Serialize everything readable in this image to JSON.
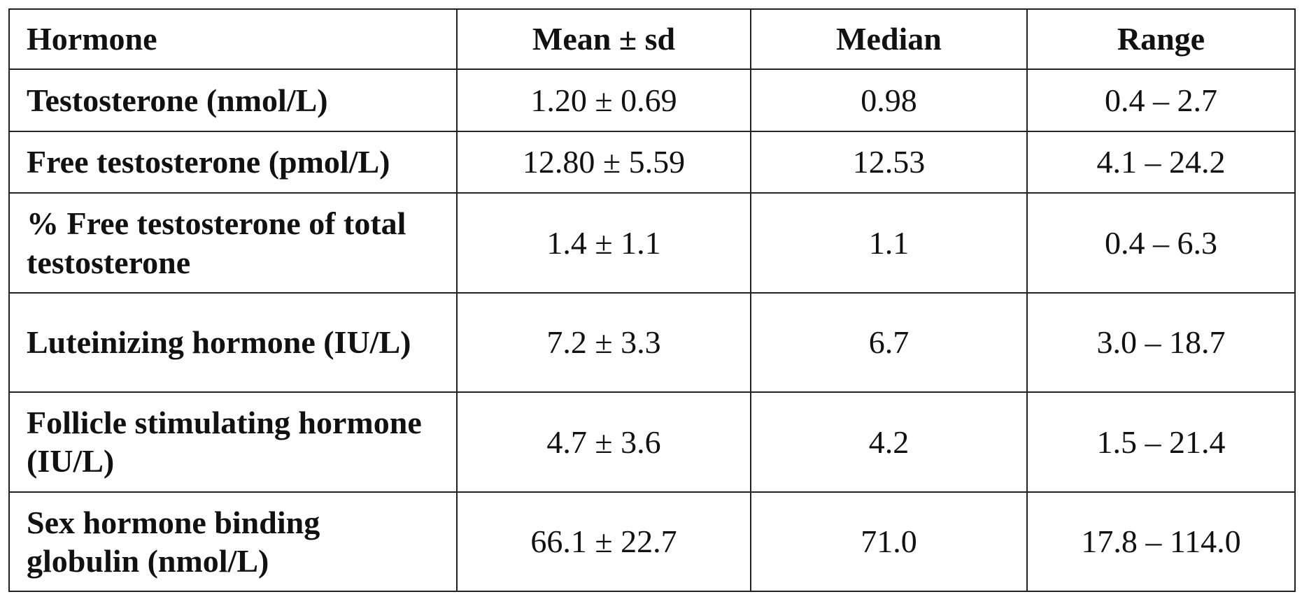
{
  "table": {
    "headers": {
      "hormone": "Hormone",
      "mean": "Mean ± sd",
      "median": "Median",
      "range": "Range"
    },
    "rows": [
      {
        "hormone": "Testosterone (nmol/L)",
        "mean": "1.20 ± 0.69",
        "median": "0.98",
        "range": "0.4 – 2.7"
      },
      {
        "hormone": "Free testosterone (pmol/L)",
        "mean": "12.80 ± 5.59",
        "median": "12.53",
        "range": "4.1 – 24.2"
      },
      {
        "hormone": "% Free testosterone of total testosterone",
        "mean": "1.4 ± 1.1",
        "median": "1.1",
        "range": "0.4 – 6.3"
      },
      {
        "hormone": "Luteinizing hormone (IU/L)",
        "mean": "7.2 ± 3.3",
        "median": "6.7",
        "range": "3.0 – 18.7"
      },
      {
        "hormone": "Follicle stimulating hormone (IU/L)",
        "mean": "4.7 ± 3.6",
        "median": "4.2",
        "range": "1.5 – 21.4"
      },
      {
        "hormone": "Sex hormone binding globulin (nmol/L)",
        "mean": "66.1 ± 22.7",
        "median": "71.0",
        "range": "17.8 – 114.0"
      }
    ]
  }
}
